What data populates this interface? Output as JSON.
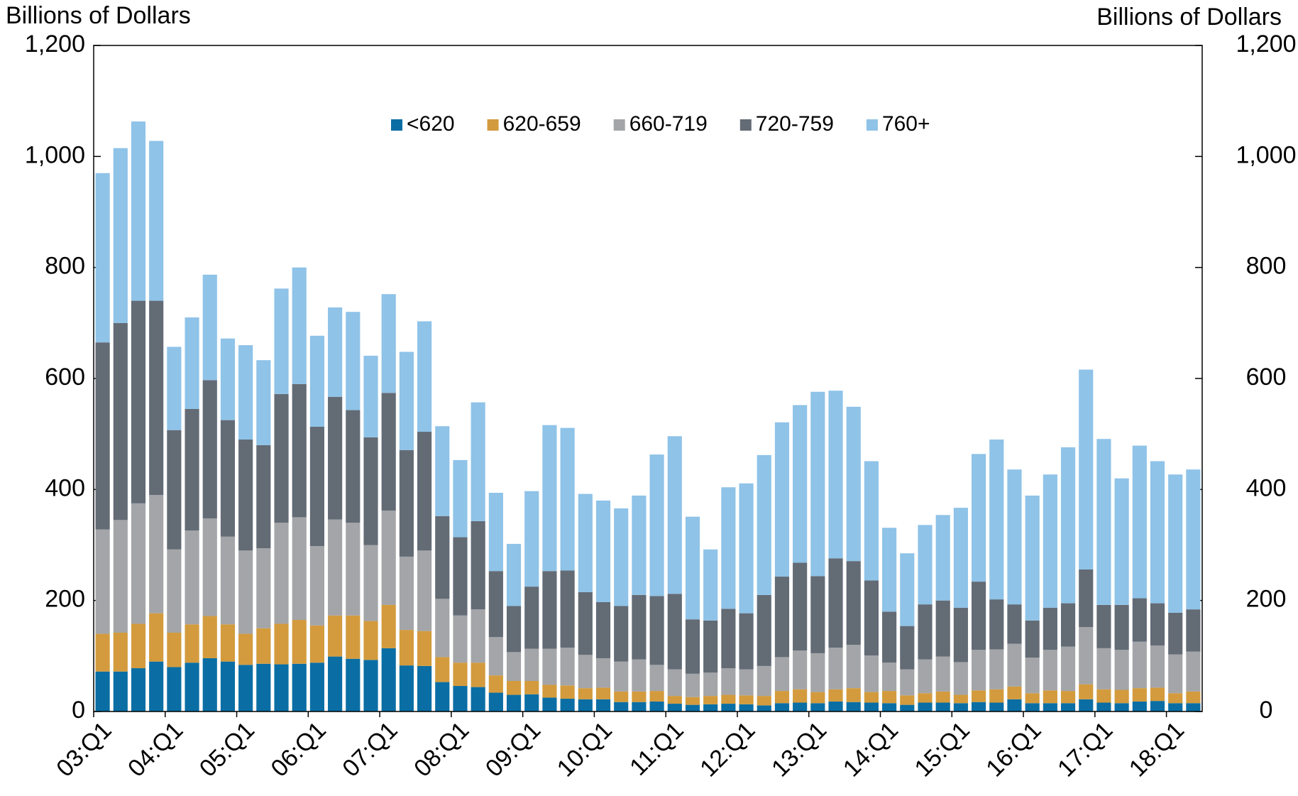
{
  "chart_data": {
    "type": "stacked_bar",
    "y_label": "Billions of Dollars",
    "y2_label": "Billions of Dollars",
    "categories": [
      "03:Q1",
      null,
      null,
      null,
      "04:Q1",
      null,
      null,
      null,
      "05:Q1",
      null,
      null,
      null,
      "06:Q1",
      null,
      null,
      null,
      "07:Q1",
      null,
      null,
      null,
      "08:Q1",
      null,
      null,
      null,
      "09:Q1",
      null,
      null,
      null,
      "10:Q1",
      null,
      null,
      null,
      "11:Q1",
      null,
      null,
      null,
      "12:Q1",
      null,
      null,
      null,
      "13:Q1",
      null,
      null,
      null,
      "14:Q1",
      null,
      null,
      null,
      "15:Q1",
      null,
      null,
      null,
      "16:Q1",
      null,
      null,
      null,
      "17:Q1",
      null,
      null,
      null,
      "18:Q1",
      null
    ],
    "series": [
      {
        "name": "<620",
        "color": "#0a6ea4",
        "values": [
          72,
          72,
          78,
          90,
          80,
          88,
          96,
          90,
          84,
          86,
          85,
          86,
          88,
          99,
          95,
          93,
          114,
          83,
          82,
          53,
          46,
          44,
          34,
          30,
          31,
          25,
          23,
          22,
          22,
          17,
          17,
          18,
          14,
          12,
          13,
          14,
          13,
          11,
          15,
          16,
          15,
          18,
          17,
          16,
          15,
          12,
          16,
          16,
          15,
          17,
          16,
          22,
          15,
          15,
          15,
          22,
          16,
          15,
          18,
          19,
          15,
          15
        ]
      },
      {
        "name": "620-659",
        "color": "#d39b3d",
        "values": [
          68,
          70,
          80,
          87,
          62,
          69,
          76,
          67,
          56,
          64,
          73,
          79,
          67,
          74,
          78,
          70,
          78,
          64,
          63,
          45,
          42,
          44,
          31,
          25,
          24,
          23,
          24,
          20,
          21,
          19,
          19,
          19,
          14,
          14,
          15,
          16,
          16,
          17,
          22,
          24,
          20,
          22,
          25,
          19,
          22,
          17,
          17,
          20,
          15,
          21,
          24,
          23,
          18,
          23,
          22,
          27,
          24,
          24,
          24,
          24,
          18,
          21
        ]
      },
      {
        "name": "660-719",
        "color": "#a3a5a8",
        "values": [
          188,
          203,
          217,
          213,
          150,
          169,
          176,
          158,
          150,
          144,
          182,
          185,
          143,
          173,
          167,
          137,
          170,
          132,
          145,
          105,
          85,
          96,
          69,
          52,
          58,
          65,
          68,
          60,
          53,
          54,
          58,
          47,
          48,
          42,
          42,
          48,
          47,
          54,
          61,
          70,
          70,
          75,
          78,
          66,
          51,
          47,
          61,
          63,
          59,
          73,
          72,
          77,
          64,
          73,
          80,
          103,
          74,
          72,
          84,
          76,
          70,
          72
        ]
      },
      {
        "name": "720-759",
        "color": "#636b75",
        "values": [
          337,
          355,
          365,
          350,
          215,
          219,
          249,
          210,
          200,
          186,
          232,
          240,
          215,
          221,
          203,
          194,
          212,
          192,
          214,
          149,
          141,
          159,
          119,
          83,
          112,
          140,
          139,
          113,
          101,
          100,
          116,
          124,
          136,
          98,
          94,
          107,
          101,
          128,
          145,
          158,
          139,
          161,
          151,
          135,
          92,
          78,
          99,
          101,
          98,
          123,
          90,
          71,
          67,
          76,
          78,
          104,
          78,
          81,
          78,
          76,
          75,
          76
        ]
      },
      {
        "name": "760+",
        "color": "#8fc3e8",
        "values": [
          305,
          315,
          323,
          288,
          150,
          165,
          190,
          147,
          170,
          153,
          190,
          210,
          164,
          161,
          177,
          147,
          178,
          177,
          199,
          162,
          139,
          214,
          141,
          112,
          172,
          263,
          257,
          177,
          183,
          176,
          179,
          255,
          284,
          185,
          128,
          219,
          234,
          252,
          278,
          284,
          332,
          302,
          278,
          215,
          151,
          131,
          143,
          154,
          180,
          230,
          288,
          243,
          225,
          240,
          281,
          360,
          299,
          228,
          275,
          256,
          249,
          252
        ]
      }
    ],
    "ylim": [
      0,
      1200
    ],
    "yticks": [
      0,
      200,
      400,
      600,
      800,
      {
        "value": 1000,
        "label": "1,000"
      },
      {
        "value": 1200,
        "label": "1,200"
      }
    ],
    "legend": "top-center"
  }
}
